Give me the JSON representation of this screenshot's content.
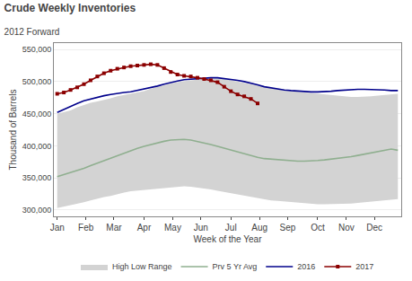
{
  "chart_data": {
    "type": "line",
    "title": "Crude Weekly Inventories",
    "subtitle": "2012 Forward",
    "xlabel": "Week of the Year",
    "ylabel": "Thousand of Barrels",
    "x": [
      1,
      2,
      3,
      4,
      5,
      6,
      7,
      8,
      9,
      10,
      11,
      12,
      13,
      14,
      15,
      16,
      17,
      18,
      19,
      20,
      21,
      22,
      23,
      24,
      25,
      26,
      27,
      28,
      29,
      30,
      31,
      32,
      33,
      34,
      35,
      36,
      37,
      38,
      39,
      40,
      41,
      42,
      43,
      44,
      45,
      46,
      47,
      48,
      49,
      50,
      51,
      52
    ],
    "xlim": [
      0.5,
      52.5
    ],
    "xticks": [
      {
        "value": 1.0,
        "label": "Jan"
      },
      {
        "value": 5.3,
        "label": "Feb"
      },
      {
        "value": 9.5,
        "label": "Mar"
      },
      {
        "value": 14.0,
        "label": "Apr"
      },
      {
        "value": 18.3,
        "label": "May"
      },
      {
        "value": 22.5,
        "label": "Jun"
      },
      {
        "value": 27.0,
        "label": "Jul"
      },
      {
        "value": 31.3,
        "label": "Aug"
      },
      {
        "value": 35.5,
        "label": "Sep"
      },
      {
        "value": 40.0,
        "label": "Oct"
      },
      {
        "value": 44.3,
        "label": "Nov"
      },
      {
        "value": 48.5,
        "label": "Dec"
      }
    ],
    "ylim": [
      290000,
      560000
    ],
    "yticks": [
      {
        "value": 300000,
        "label": "300,000"
      },
      {
        "value": 350000,
        "label": "350,000"
      },
      {
        "value": 400000,
        "label": "400,000"
      },
      {
        "value": 450000,
        "label": "450,000"
      },
      {
        "value": 500000,
        "label": "500,000"
      },
      {
        "value": 550000,
        "label": "550,000"
      }
    ],
    "grid": true,
    "legend": "bottom",
    "series": [
      {
        "name": "High Low Range",
        "type": "band",
        "color": "#d3d3d3",
        "low": [
          303000,
          305000,
          307000,
          310000,
          312000,
          315000,
          318000,
          320000,
          322000,
          325000,
          327000,
          329000,
          330000,
          332000,
          333000,
          334000,
          335000,
          336000,
          337000,
          337000,
          336000,
          335000,
          334000,
          332000,
          330000,
          328000,
          326000,
          324000,
          322000,
          320000,
          318000,
          316000,
          315000,
          314000,
          313000,
          312000,
          311000,
          310000,
          310000,
          309000,
          309000,
          309000,
          309000,
          309000,
          310000,
          311000,
          312000,
          313000,
          314000,
          315000,
          316000,
          317000
        ],
        "high": [
          450000,
          452000,
          455000,
          460000,
          464000,
          467000,
          469000,
          471000,
          474000,
          477000,
          479000,
          481000,
          483000,
          485000,
          489000,
          492000,
          495000,
          497000,
          499000,
          501000,
          502000,
          503000,
          504000,
          505000,
          505000,
          504000,
          502000,
          500000,
          498000,
          496000,
          494000,
          491000,
          489000,
          487000,
          486000,
          485000,
          484000,
          483000,
          482000,
          481000,
          480000,
          479000,
          478000,
          477000,
          476000,
          476000,
          476000,
          477000,
          478000,
          479000,
          480000,
          481000
        ]
      },
      {
        "name": "Prv 5 Yr Avg",
        "type": "line",
        "color": "#8faf8f",
        "values": [
          352000,
          355000,
          358000,
          361000,
          365000,
          369000,
          373000,
          377000,
          381000,
          385000,
          389000,
          393000,
          396000,
          399000,
          402000,
          405000,
          407000,
          409000,
          410000,
          410000,
          409000,
          407000,
          405000,
          402000,
          399000,
          396000,
          393000,
          390000,
          387000,
          384000,
          382000,
          380000,
          379000,
          378000,
          377000,
          376000,
          376000,
          376000,
          376000,
          377000,
          378000,
          379000,
          380000,
          381000,
          383000,
          385000,
          387000,
          390000,
          392000,
          394000,
          395000,
          393000
        ]
      },
      {
        "name": "2016",
        "type": "line",
        "color": "#00008b",
        "values": [
          452000,
          457000,
          461000,
          466000,
          470000,
          473000,
          476000,
          478000,
          480000,
          482000,
          483000,
          484000,
          486000,
          488000,
          490000,
          493000,
          496000,
          499000,
          501000,
          503000,
          504000,
          505000,
          506000,
          506000,
          506000,
          505000,
          504000,
          502000,
          500000,
          498000,
          495000,
          492000,
          490000,
          488000,
          487000,
          486000,
          485000,
          484000,
          484000,
          484000,
          484000,
          485000,
          486000,
          487000,
          488000,
          488000,
          488000,
          488000,
          487000,
          487000,
          486000,
          486000
        ]
      },
      {
        "name": "2017",
        "type": "line",
        "color": "#8b0000",
        "marker": "square",
        "values": [
          481000,
          483000,
          487000,
          491000,
          496000,
          502000,
          508000,
          513000,
          517000,
          520000,
          522000,
          524000,
          525000,
          526000,
          527000,
          526000,
          521000,
          515000,
          511000,
          509000,
          508000,
          506000,
          504000,
          502000,
          499000,
          492000,
          485000,
          480000,
          477000,
          473000,
          466000,
          null,
          null,
          null,
          null,
          null,
          null,
          null,
          null,
          null,
          null,
          null,
          null,
          null,
          null,
          null,
          null,
          null,
          null,
          null,
          null,
          null
        ]
      }
    ]
  }
}
